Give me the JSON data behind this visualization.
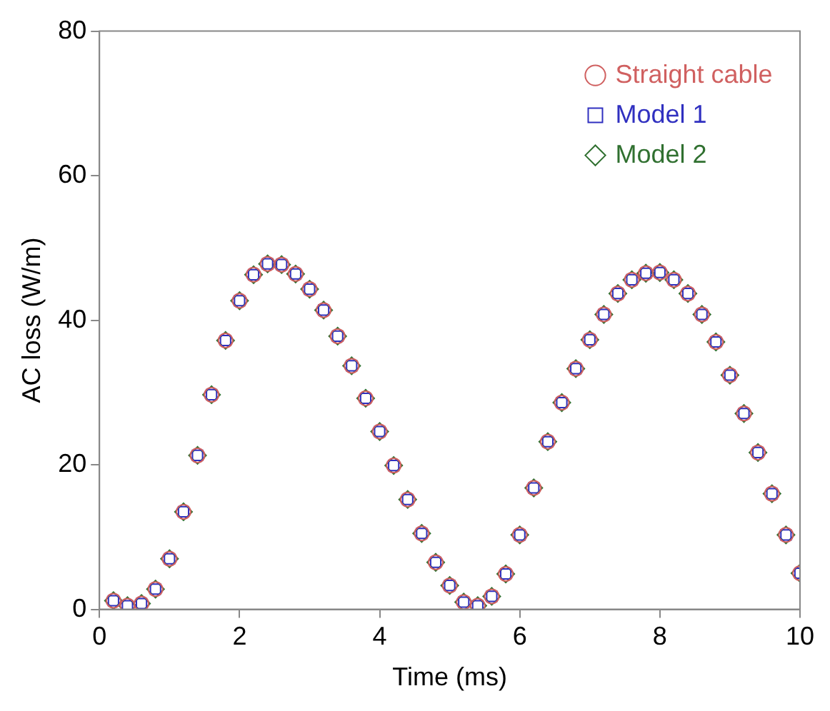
{
  "chart_data": {
    "type": "scatter",
    "xlabel": "Time (ms)",
    "ylabel": "AC loss (W/m)",
    "x": [
      0.2,
      0.4,
      0.6,
      0.8,
      1.0,
      1.2,
      1.4,
      1.6,
      1.8,
      2.0,
      2.2,
      2.4,
      2.6,
      2.8,
      3.0,
      3.2,
      3.4,
      3.6,
      3.8,
      4.0,
      4.2,
      4.4,
      4.6,
      4.8,
      5.0,
      5.2,
      5.4,
      5.6,
      5.8,
      6.0,
      6.2,
      6.4,
      6.6,
      6.8,
      7.0,
      7.2,
      7.4,
      7.6,
      7.8,
      8.0,
      8.2,
      8.4,
      8.6,
      8.8,
      9.0,
      9.2,
      9.4,
      9.6,
      9.8,
      10.0
    ],
    "series": [
      {
        "name": "Straight cable",
        "color": "#d06060",
        "marker": "circle",
        "values": [
          1.2,
          0.5,
          0.8,
          2.8,
          7,
          13.5,
          21.3,
          29.7,
          37.2,
          42.7,
          46.3,
          47.8,
          47.7,
          46.4,
          44.3,
          41.4,
          37.8,
          33.7,
          29.2,
          24.6,
          19.9,
          15.2,
          10.5,
          6.5,
          3.3,
          1.0,
          0.5,
          1.8,
          4.9,
          10.3,
          16.8,
          23.2,
          28.6,
          33.3,
          37.3,
          40.8,
          43.7,
          45.6,
          46.5,
          46.6,
          45.6,
          43.7,
          40.8,
          37.0,
          32.4,
          27.1,
          21.7,
          16.0,
          10.3,
          5.0
        ]
      },
      {
        "name": "Model 1",
        "color": "#3030c0",
        "marker": "square",
        "values": [
          1.2,
          0.5,
          0.8,
          2.8,
          7,
          13.5,
          21.3,
          29.7,
          37.2,
          42.7,
          46.3,
          47.8,
          47.7,
          46.4,
          44.3,
          41.4,
          37.8,
          33.7,
          29.2,
          24.6,
          19.9,
          15.2,
          10.5,
          6.5,
          3.3,
          1.0,
          0.5,
          1.8,
          4.9,
          10.3,
          16.8,
          23.2,
          28.6,
          33.3,
          37.3,
          40.8,
          43.7,
          45.6,
          46.5,
          46.6,
          45.6,
          43.7,
          40.8,
          37.0,
          32.4,
          27.1,
          21.7,
          16.0,
          10.3,
          5.0
        ]
      },
      {
        "name": "Model 2",
        "color": "#307030",
        "marker": "diamond",
        "values": [
          1.2,
          0.5,
          0.8,
          2.8,
          7,
          13.5,
          21.3,
          29.7,
          37.2,
          42.7,
          46.3,
          47.8,
          47.7,
          46.4,
          44.3,
          41.4,
          37.8,
          33.7,
          29.2,
          24.6,
          19.9,
          15.2,
          10.5,
          6.5,
          3.3,
          1.0,
          0.5,
          1.8,
          4.9,
          10.3,
          16.8,
          23.2,
          28.6,
          33.3,
          37.3,
          40.8,
          43.7,
          45.6,
          46.5,
          46.6,
          45.6,
          43.7,
          40.8,
          37.0,
          32.4,
          27.1,
          21.7,
          16.0,
          10.3,
          5.0
        ]
      }
    ],
    "xlim": [
      0,
      10
    ],
    "xticks": [
      0,
      2,
      4,
      6,
      8,
      10
    ],
    "ylim": [
      0,
      80
    ],
    "yticks": [
      0,
      20,
      40,
      60,
      80
    ],
    "grid": false,
    "legend": "top right"
  }
}
